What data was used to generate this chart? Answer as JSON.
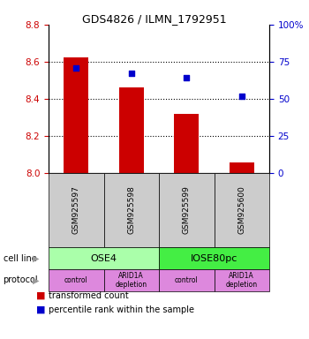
{
  "title": "GDS4826 / ILMN_1792951",
  "samples": [
    "GSM925597",
    "GSM925598",
    "GSM925599",
    "GSM925600"
  ],
  "bar_values": [
    8.625,
    8.46,
    8.32,
    8.055
  ],
  "bar_bottom": 8.0,
  "scatter_values": [
    71,
    67,
    64,
    52
  ],
  "ylim_left": [
    8.0,
    8.8
  ],
  "ylim_right": [
    0,
    100
  ],
  "yticks_left": [
    8.0,
    8.2,
    8.4,
    8.6,
    8.8
  ],
  "yticks_right": [
    0,
    25,
    50,
    75,
    100
  ],
  "ytick_labels_right": [
    "0",
    "25",
    "50",
    "75",
    "100%"
  ],
  "bar_color": "#cc0000",
  "scatter_color": "#0000cc",
  "cell_line_labels": [
    "OSE4",
    "IOSE80pc"
  ],
  "cell_line_spans": [
    [
      0,
      2
    ],
    [
      2,
      4
    ]
  ],
  "cell_line_color_ose4": "#aaffaa",
  "cell_line_color_iose80pc": "#44ee44",
  "protocol_labels": [
    "control",
    "ARID1A\ndepletion",
    "control",
    "ARID1A\ndepletion"
  ],
  "protocol_color": "#dd88dd",
  "sample_box_color": "#cccccc",
  "legend_bar_label": "transformed count",
  "legend_scatter_label": "percentile rank within the sample",
  "ylabel_left_color": "#cc0000",
  "ylabel_right_color": "#0000cc",
  "cell_line_row_label": "cell line",
  "protocol_row_label": "protocol",
  "arrow_color": "#999999",
  "grid_lines": [
    8.2,
    8.4,
    8.6
  ]
}
